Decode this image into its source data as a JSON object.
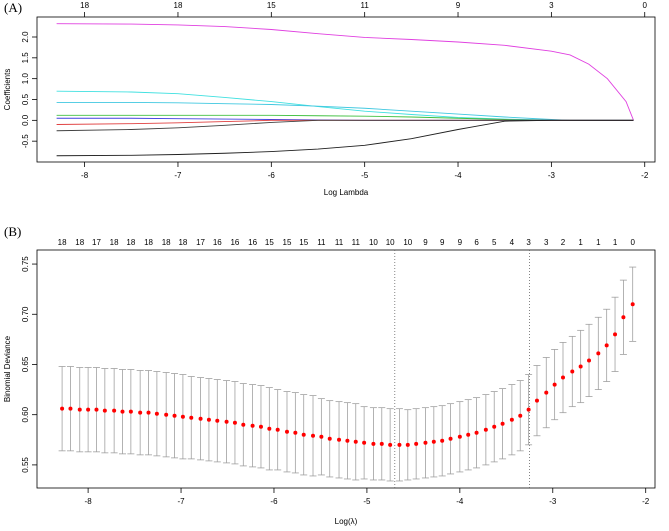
{
  "chart_data": [
    {
      "type": "line",
      "panel_label": "(A)",
      "x_label": "Log Lambda",
      "y_label": "Coefficients",
      "xlim": [
        -8.51,
        -1.89
      ],
      "ylim": [
        -1.0,
        2.48
      ],
      "xticks": [
        -8,
        -7,
        -6,
        -5,
        -4,
        -3,
        -2
      ],
      "yticks": [
        -0.5,
        {
          "value": 0,
          "label": "0.0"
        },
        0.5,
        {
          "value": 1,
          "label": "1.0"
        },
        1.5,
        {
          "value": 2,
          "label": "2.0"
        }
      ],
      "x2ticks": [
        {
          "value": -8,
          "label": "18"
        },
        {
          "value": -7,
          "label": "18"
        },
        {
          "value": -6,
          "label": "15"
        },
        {
          "value": -5,
          "label": "11"
        },
        {
          "value": -4,
          "label": "9"
        },
        {
          "value": -3,
          "label": "3"
        },
        {
          "value": -2,
          "label": "0"
        }
      ],
      "x": [
        -8.3,
        -7.5,
        -7,
        -6.5,
        -6,
        -5.5,
        -5,
        -4.5,
        -4,
        -3.5,
        -3,
        -2.8,
        -2.6,
        -2.4,
        -2.2,
        -2.12
      ],
      "series": [
        {
          "color": "#e040e0",
          "values": [
            2.32,
            2.31,
            2.29,
            2.25,
            2.18,
            2.08,
            1.99,
            1.94,
            1.88,
            1.8,
            1.66,
            1.57,
            1.35,
            1.0,
            0.45,
            0
          ]
        },
        {
          "color": "#40e0e0",
          "values": [
            0.7,
            0.68,
            0.64,
            0.55,
            0.45,
            0.33,
            0.22,
            0.14,
            0.07,
            0.03,
            0.01,
            0,
            0,
            0,
            0,
            0
          ]
        },
        {
          "color": "#40c8e0",
          "values": [
            0.43,
            0.43,
            0.42,
            0.4,
            0.38,
            0.34,
            0.29,
            0.22,
            0.15,
            0.08,
            0.02,
            0,
            0,
            0,
            0,
            0
          ]
        },
        {
          "color": "#40c040",
          "values": [
            0.12,
            0.12,
            0.12,
            0.12,
            0.12,
            0.11,
            0.1,
            0.08,
            0.05,
            0.02,
            0,
            0,
            0,
            0,
            0,
            0
          ]
        },
        {
          "color": "#4040e0",
          "values": [
            0.05,
            0.05,
            0.04,
            0.03,
            0.02,
            0.01,
            0,
            0,
            0,
            0,
            0,
            0,
            0,
            0,
            0,
            0
          ]
        },
        {
          "color": "#e04040",
          "values": [
            -0.1,
            -0.08,
            -0.06,
            -0.03,
            0,
            0,
            0,
            0,
            0,
            0,
            0,
            0,
            0,
            0,
            0,
            0
          ]
        },
        {
          "color": "#404040",
          "values": [
            -0.25,
            -0.22,
            -0.18,
            -0.12,
            -0.05,
            0,
            0,
            0,
            0,
            0,
            0,
            0,
            0,
            0,
            0,
            0
          ]
        },
        {
          "color": "#202020",
          "values": [
            -0.85,
            -0.84,
            -0.82,
            -0.79,
            -0.75,
            -0.69,
            -0.6,
            -0.44,
            -0.22,
            -0.02,
            0,
            0,
            0,
            0,
            0,
            0
          ]
        }
      ]
    },
    {
      "type": "errorbar",
      "panel_label": "(B)",
      "x_label": "Log(λ)",
      "y_label": "Binomial Deviance",
      "xlim": [
        -8.55,
        -1.9
      ],
      "ylim": [
        0.527,
        0.764
      ],
      "xticks": [
        -8,
        -7,
        -6,
        -5,
        -4,
        -3,
        -2
      ],
      "yticks": [
        0.55,
        {
          "value": 0.6,
          "label": "0.60"
        },
        0.65,
        {
          "value": 0.7,
          "label": "0.70"
        },
        0.75
      ],
      "vlines": [
        -4.7,
        -3.25
      ],
      "color": "#ff0000",
      "error_color": "#a0a0a0",
      "x2ticks": [
        {
          "value": -8.28,
          "label": "18"
        },
        {
          "value": -8.09,
          "label": "18"
        },
        {
          "value": -7.91,
          "label": "17"
        },
        {
          "value": -7.72,
          "label": "18"
        },
        {
          "value": -7.54,
          "label": "18"
        },
        {
          "value": -7.35,
          "label": "18"
        },
        {
          "value": -7.16,
          "label": "18"
        },
        {
          "value": -6.98,
          "label": "18"
        },
        {
          "value": -6.79,
          "label": "17"
        },
        {
          "value": -6.61,
          "label": "16"
        },
        {
          "value": -6.42,
          "label": "16"
        },
        {
          "value": -6.23,
          "label": "16"
        },
        {
          "value": -6.05,
          "label": "15"
        },
        {
          "value": -5.86,
          "label": "15"
        },
        {
          "value": -5.68,
          "label": "15"
        },
        {
          "value": -5.49,
          "label": "11"
        },
        {
          "value": -5.3,
          "label": "11"
        },
        {
          "value": -5.12,
          "label": "11"
        },
        {
          "value": -4.93,
          "label": "10"
        },
        {
          "value": -4.75,
          "label": "10"
        },
        {
          "value": -4.56,
          "label": "10"
        },
        {
          "value": -4.37,
          "label": "9"
        },
        {
          "value": -4.19,
          "label": "9"
        },
        {
          "value": -4.0,
          "label": "9"
        },
        {
          "value": -3.82,
          "label": "6"
        },
        {
          "value": -3.63,
          "label": "5"
        },
        {
          "value": -3.44,
          "label": "4"
        },
        {
          "value": -3.26,
          "label": "3"
        },
        {
          "value": -3.07,
          "label": "3"
        },
        {
          "value": -2.89,
          "label": "2"
        },
        {
          "value": -2.7,
          "label": "1"
        },
        {
          "value": -2.51,
          "label": "1"
        },
        {
          "value": -2.33,
          "label": "1"
        },
        {
          "value": -2.14,
          "label": "0"
        }
      ],
      "x": [
        -8.28,
        -8.19,
        -8.09,
        -8.0,
        -7.91,
        -7.82,
        -7.72,
        -7.63,
        -7.54,
        -7.44,
        -7.35,
        -7.26,
        -7.16,
        -7.07,
        -6.98,
        -6.89,
        -6.79,
        -6.7,
        -6.61,
        -6.51,
        -6.42,
        -6.33,
        -6.23,
        -6.14,
        -6.05,
        -5.96,
        -5.86,
        -5.77,
        -5.68,
        -5.58,
        -5.49,
        -5.4,
        -5.3,
        -5.21,
        -5.12,
        -5.03,
        -4.93,
        -4.84,
        -4.75,
        -4.65,
        -4.56,
        -4.47,
        -4.37,
        -4.28,
        -4.19,
        -4.1,
        -4.0,
        -3.91,
        -3.82,
        -3.72,
        -3.63,
        -3.54,
        -3.44,
        -3.35,
        -3.26,
        -3.17,
        -3.07,
        -2.98,
        -2.89,
        -2.79,
        -2.7,
        -2.61,
        -2.51,
        -2.42,
        -2.33,
        -2.24,
        -2.14
      ],
      "values": [
        0.606,
        0.606,
        0.605,
        0.605,
        0.605,
        0.604,
        0.604,
        0.603,
        0.603,
        0.602,
        0.602,
        0.601,
        0.6,
        0.599,
        0.598,
        0.597,
        0.596,
        0.595,
        0.594,
        0.593,
        0.592,
        0.59,
        0.589,
        0.588,
        0.586,
        0.585,
        0.583,
        0.582,
        0.58,
        0.579,
        0.578,
        0.576,
        0.575,
        0.574,
        0.573,
        0.572,
        0.571,
        0.571,
        0.57,
        0.57,
        0.57,
        0.571,
        0.572,
        0.573,
        0.574,
        0.576,
        0.578,
        0.58,
        0.582,
        0.585,
        0.588,
        0.591,
        0.595,
        0.599,
        0.605,
        0.614,
        0.622,
        0.63,
        0.637,
        0.643,
        0.648,
        0.654,
        0.661,
        0.669,
        0.68,
        0.697,
        0.71
      ],
      "errors": [
        0.042,
        0.042,
        0.042,
        0.042,
        0.042,
        0.042,
        0.042,
        0.042,
        0.042,
        0.042,
        0.042,
        0.042,
        0.042,
        0.042,
        0.042,
        0.041,
        0.041,
        0.041,
        0.041,
        0.041,
        0.041,
        0.041,
        0.041,
        0.041,
        0.041,
        0.04,
        0.04,
        0.04,
        0.04,
        0.04,
        0.038,
        0.038,
        0.038,
        0.038,
        0.038,
        0.036,
        0.036,
        0.036,
        0.036,
        0.036,
        0.035,
        0.035,
        0.035,
        0.035,
        0.035,
        0.035,
        0.035,
        0.035,
        0.035,
        0.035,
        0.035,
        0.035,
        0.035,
        0.035,
        0.035,
        0.035,
        0.035,
        0.035,
        0.035,
        0.035,
        0.036,
        0.036,
        0.036,
        0.036,
        0.037,
        0.037,
        0.037
      ]
    }
  ]
}
